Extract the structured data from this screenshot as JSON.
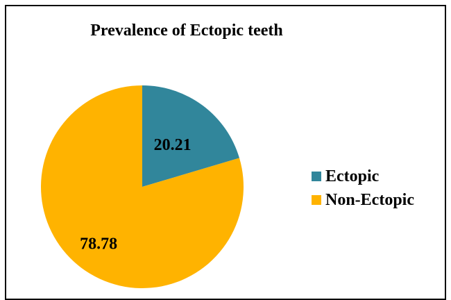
{
  "chart_data": {
    "type": "pie",
    "title": "Prevalence of Ectopic teeth",
    "slices": [
      {
        "name": "Ectopic",
        "value": 20.21,
        "label": "20.21",
        "color": "#31869B"
      },
      {
        "name": "Non-Ectopic",
        "value": 78.78,
        "label": "78.78",
        "color": "#FFB300"
      }
    ],
    "legend": "right",
    "data_labels": "inside"
  }
}
